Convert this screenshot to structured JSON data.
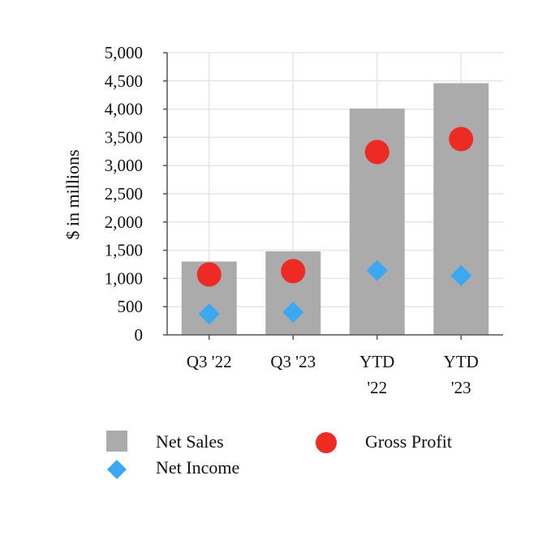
{
  "chart_data": {
    "type": "bar",
    "categories": [
      {
        "lines": [
          "Q3 '22"
        ]
      },
      {
        "lines": [
          "Q3 '23"
        ]
      },
      {
        "lines": [
          "YTD",
          "'22"
        ]
      },
      {
        "lines": [
          "YTD",
          "'23"
        ]
      }
    ],
    "ylabel": "$ in millions",
    "ylim": [
      0,
      5000
    ],
    "yticks": [
      0,
      500,
      1000,
      1500,
      2000,
      2500,
      3000,
      3500,
      4000,
      4500,
      5000
    ],
    "ytick_labels": [
      "0",
      "500",
      "1,000",
      "1,500",
      "2,000",
      "2,500",
      "3,000",
      "3,500",
      "4,000",
      "4,500",
      "5,000"
    ],
    "grid": true,
    "legend_position": "bottom",
    "series": [
      {
        "name": "Net Sales",
        "kind": "bar",
        "marker": "square",
        "color": "#ababab",
        "values": [
          1300,
          1480,
          4010,
          4460
        ]
      },
      {
        "name": "Gross Profit",
        "kind": "scatter",
        "marker": "circle",
        "color": "#ee2a24",
        "values": [
          1070,
          1130,
          3240,
          3470
        ]
      },
      {
        "name": "Net Income",
        "kind": "scatter",
        "marker": "diamond",
        "color": "#3aa8f3",
        "values": [
          370,
          400,
          1140,
          1050
        ]
      }
    ]
  }
}
